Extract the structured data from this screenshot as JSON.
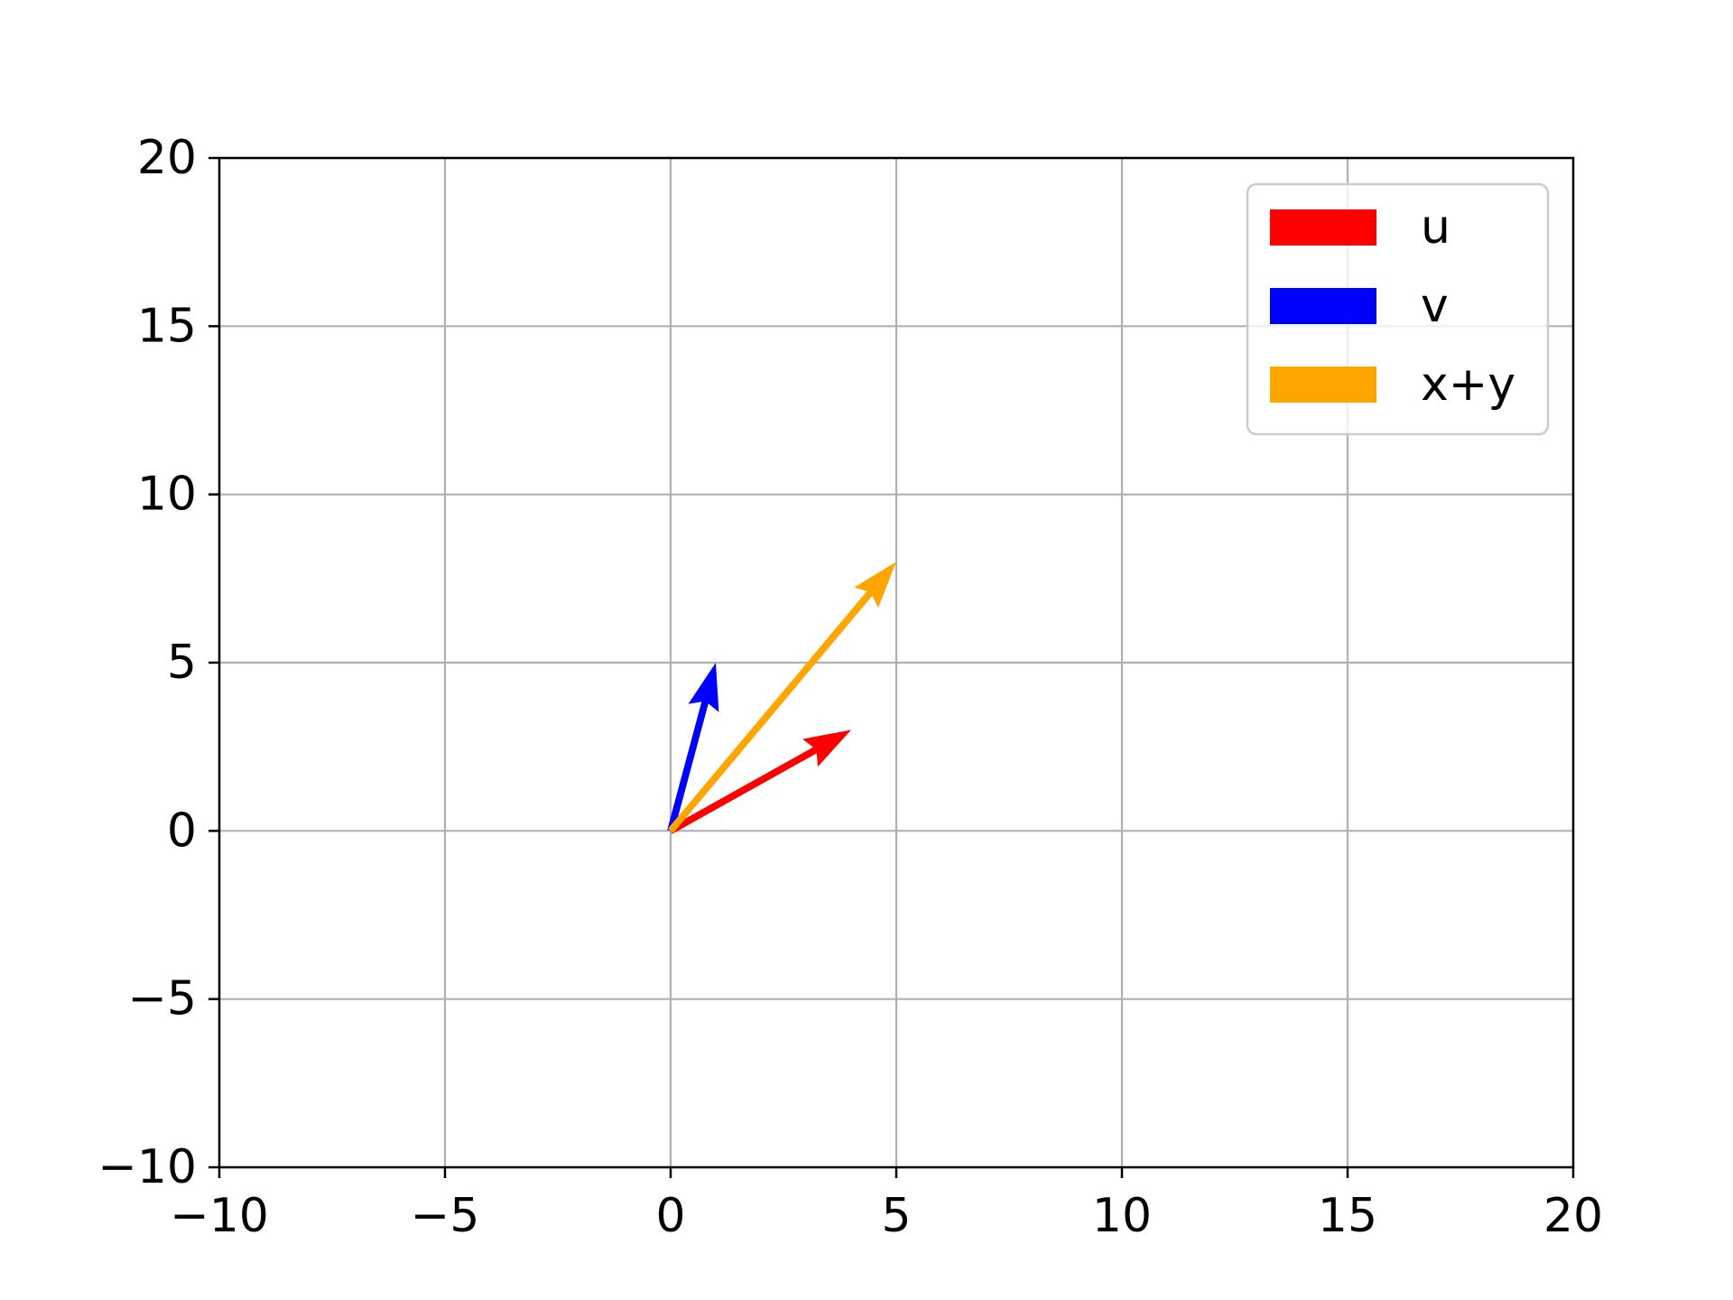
{
  "chart_data": {
    "type": "quiver",
    "title": "",
    "xlabel": "",
    "ylabel": "",
    "xlim": [
      -10,
      20
    ],
    "ylim": [
      -10,
      20
    ],
    "xticks": [
      -10,
      -5,
      0,
      5,
      10,
      15,
      20
    ],
    "yticks": [
      -10,
      -5,
      0,
      5,
      10,
      15,
      20
    ],
    "xtick_labels": [
      "−10",
      "−5",
      "0",
      "5",
      "10",
      "15",
      "20"
    ],
    "ytick_labels": [
      "−10",
      "−5",
      "0",
      "5",
      "10",
      "15",
      "20"
    ],
    "grid": true,
    "legend_position": "top-right",
    "series": [
      {
        "name": "u",
        "color": "#ff0000",
        "origin": [
          0,
          0
        ],
        "vector": [
          4,
          3
        ]
      },
      {
        "name": "v",
        "color": "#0000ff",
        "origin": [
          0,
          0
        ],
        "vector": [
          1,
          5
        ]
      },
      {
        "name": "x+y",
        "color": "#ffa500",
        "origin": [
          0,
          0
        ],
        "vector": [
          5,
          8
        ]
      }
    ]
  }
}
